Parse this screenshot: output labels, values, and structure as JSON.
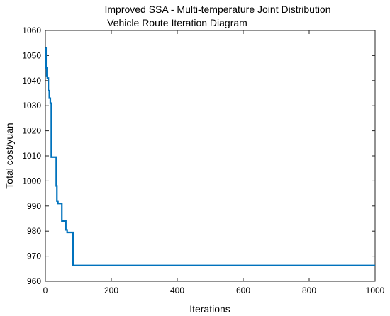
{
  "chart_data": {
    "type": "line",
    "title": [
      "Improved SSA - Multi-temperature Joint Distribution",
      "Vehicle Route Iteration Diagram"
    ],
    "xlabel": "Iterations",
    "ylabel": "Total cost/yuan",
    "xlim": [
      0,
      1000
    ],
    "ylim": [
      960,
      1060
    ],
    "xticks": [
      0,
      200,
      400,
      600,
      800,
      1000
    ],
    "yticks": [
      960,
      970,
      980,
      990,
      1000,
      1010,
      1020,
      1030,
      1040,
      1050,
      1060
    ],
    "grid": false,
    "series": [
      {
        "color": "#0072BD",
        "x": [
          1,
          2,
          2,
          4,
          4,
          6,
          6,
          9,
          9,
          12,
          12,
          15,
          15,
          18,
          18,
          33,
          33,
          35,
          35,
          38,
          38,
          40,
          40,
          50,
          50,
          58,
          58,
          62,
          62,
          66,
          66,
          72,
          72,
          84,
          84,
          1000
        ],
        "y": [
          1053,
          1053,
          1045,
          1045,
          1042,
          1042,
          1041,
          1041,
          1036,
          1036,
          1033,
          1033,
          1031,
          1031,
          1009.5,
          1009.5,
          998,
          998,
          992,
          992,
          991,
          991,
          991,
          991,
          984,
          984,
          984,
          984,
          980.5,
          980.5,
          979.5,
          979.5,
          979.5,
          979.5,
          966.3,
          966.3
        ]
      }
    ]
  }
}
